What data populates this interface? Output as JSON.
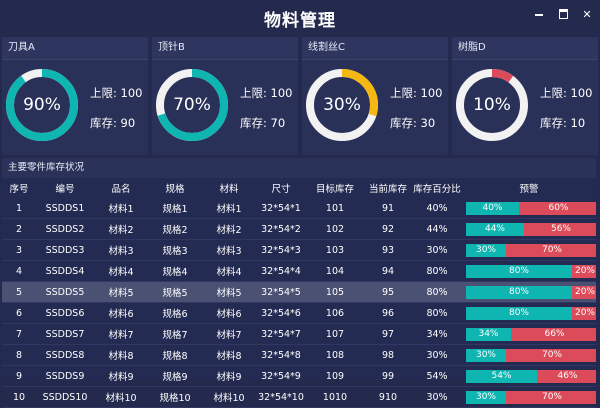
{
  "app": {
    "title": "物料管理"
  },
  "window_controls": {
    "minimize": "−",
    "maximize": "□",
    "close": "✕"
  },
  "colors": {
    "teal": "#0fb5b0",
    "amber": "#f5b812",
    "red": "#dc4b5a",
    "track": "#f2f2f2"
  },
  "cards": [
    {
      "title": "刀具A",
      "percent_label": "90%",
      "fill": 0.9,
      "color": "#0fb5b0",
      "limit": "上限: 100",
      "stock": "库存: 90"
    },
    {
      "title": "顶针B",
      "percent_label": "70%",
      "fill": 0.7,
      "color": "#0fb5b0",
      "limit": "上限: 100",
      "stock": "库存: 70"
    },
    {
      "title": "线割丝C",
      "percent_label": "30%",
      "fill": 0.3,
      "color": "#f5b812",
      "limit": "上限: 100",
      "stock": "库存: 30"
    },
    {
      "title": "树脂D",
      "percent_label": "10%",
      "fill": 0.1,
      "color": "#dc4b5a",
      "limit": "上限: 100",
      "stock": "库存: 10"
    }
  ],
  "table": {
    "title": "主要零件库存状况",
    "headers": [
      "序号",
      "编号",
      "品名",
      "规格",
      "材料",
      "尺寸",
      "目标库存",
      "当前库存",
      "库存百分比",
      "预警"
    ],
    "selected_row": 4,
    "rows": [
      {
        "no": "1",
        "code": "SSDDS1",
        "name": "材料1",
        "spec": "规格1",
        "material": "材料1",
        "size": "32*54*1",
        "target": "101",
        "current": "91",
        "pct": "40%",
        "ok": 0.4,
        "ok_label": "40%",
        "low_label": "60%"
      },
      {
        "no": "2",
        "code": "SSDDS2",
        "name": "材料2",
        "spec": "规格2",
        "material": "材料2",
        "size": "32*54*2",
        "target": "102",
        "current": "92",
        "pct": "44%",
        "ok": 0.44,
        "ok_label": "44%",
        "low_label": "56%"
      },
      {
        "no": "3",
        "code": "SSDDS3",
        "name": "材料3",
        "spec": "规格3",
        "material": "材料3",
        "size": "32*54*3",
        "target": "103",
        "current": "93",
        "pct": "30%",
        "ok": 0.3,
        "ok_label": "30%",
        "low_label": "70%"
      },
      {
        "no": "4",
        "code": "SSDDS4",
        "name": "材料4",
        "spec": "规格4",
        "material": "材料4",
        "size": "32*54*4",
        "target": "104",
        "current": "94",
        "pct": "80%",
        "ok": 0.8,
        "ok_label": "80%",
        "low_label": "20%"
      },
      {
        "no": "5",
        "code": "SSDDS5",
        "name": "材料5",
        "spec": "规格5",
        "material": "材料5",
        "size": "32*54*5",
        "target": "105",
        "current": "95",
        "pct": "80%",
        "ok": 0.8,
        "ok_label": "80%",
        "low_label": "20%"
      },
      {
        "no": "6",
        "code": "SSDDS6",
        "name": "材料6",
        "spec": "规格6",
        "material": "材料6",
        "size": "32*54*6",
        "target": "106",
        "current": "96",
        "pct": "80%",
        "ok": 0.8,
        "ok_label": "80%",
        "low_label": "20%"
      },
      {
        "no": "7",
        "code": "SSDDS7",
        "name": "材料7",
        "spec": "规格7",
        "material": "材料7",
        "size": "32*54*7",
        "target": "107",
        "current": "97",
        "pct": "34%",
        "ok": 0.34,
        "ok_label": "34%",
        "low_label": "66%"
      },
      {
        "no": "8",
        "code": "SSDDS8",
        "name": "材料8",
        "spec": "规格8",
        "material": "材料8",
        "size": "32*54*8",
        "target": "108",
        "current": "98",
        "pct": "30%",
        "ok": 0.3,
        "ok_label": "30%",
        "low_label": "70%"
      },
      {
        "no": "9",
        "code": "SSDDS9",
        "name": "材料9",
        "spec": "规格9",
        "material": "材料9",
        "size": "32*54*9",
        "target": "109",
        "current": "99",
        "pct": "54%",
        "ok": 0.54,
        "ok_label": "54%",
        "low_label": "46%"
      },
      {
        "no": "10",
        "code": "SSDDS10",
        "name": "材料10",
        "spec": "规格10",
        "material": "材料10",
        "size": "32*54*10",
        "target": "1010",
        "current": "910",
        "pct": "30%",
        "ok": 0.3,
        "ok_label": "30%",
        "low_label": "70%"
      }
    ]
  }
}
